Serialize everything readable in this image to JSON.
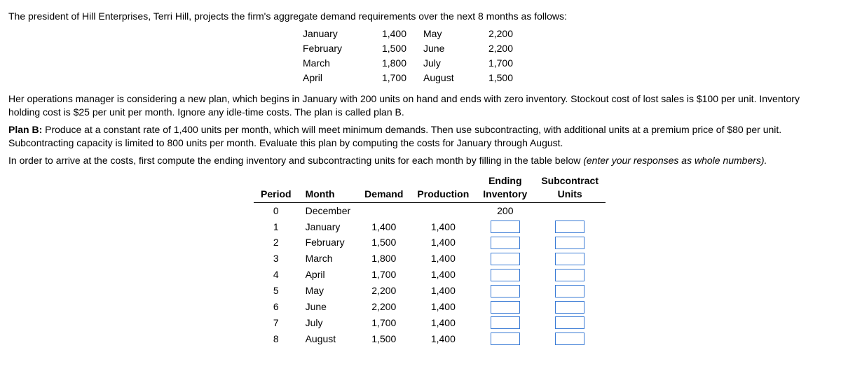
{
  "intro": "The president of Hill Enterprises, Terri Hill, projects the firm's aggregate demand requirements over the next 8 months as follows:",
  "demand_months": {
    "r1c1": "January",
    "r1c2": "1,400",
    "r1c3": "May",
    "r1c4": "2,200",
    "r2c1": "February",
    "r2c2": "1,500",
    "r2c3": "June",
    "r2c4": "2,200",
    "r3c1": "March",
    "r3c2": "1,800",
    "r3c3": "July",
    "r3c4": "1,700",
    "r4c1": "April",
    "r4c2": "1,700",
    "r4c3": "August",
    "r4c4": "1,500"
  },
  "para2": "Her operations manager is considering a new plan, which begins in January with 200 units on hand and ends with zero inventory. Stockout cost of lost sales is $100 per unit. Inventory holding cost is $25 per unit per month. Ignore any idle-time costs. The plan is called plan B.",
  "planB_label": "Plan B: ",
  "planB_text": "Produce at a constant rate of 1,400 units per month, which will meet minimum demands. Then use subcontracting, with additional units at a premium price of $80 per unit. Subcontracting capacity is limited to 800 units per month. Evaluate this plan by computing the costs for January through August.",
  "para4a": "In order to arrive at the costs, first compute the ending inventory and subcontracting units for each month by filling in the table below ",
  "para4b": "(enter your responses as whole numbers).",
  "table": {
    "headers": {
      "period": "Period",
      "month": "Month",
      "demand": "Demand",
      "production": "Production",
      "ending1": "Ending",
      "ending2": "Inventory",
      "sub1": "Subcontract",
      "sub2": "Units"
    },
    "initial_inventory": "200",
    "rows": [
      {
        "period": "0",
        "month": "December",
        "demand": "",
        "production": "",
        "has_inputs": false
      },
      {
        "period": "1",
        "month": "January",
        "demand": "1,400",
        "production": "1,400",
        "has_inputs": true
      },
      {
        "period": "2",
        "month": "February",
        "demand": "1,500",
        "production": "1,400",
        "has_inputs": true
      },
      {
        "period": "3",
        "month": "March",
        "demand": "1,800",
        "production": "1,400",
        "has_inputs": true
      },
      {
        "period": "4",
        "month": "April",
        "demand": "1,700",
        "production": "1,400",
        "has_inputs": true
      },
      {
        "period": "5",
        "month": "May",
        "demand": "2,200",
        "production": "1,400",
        "has_inputs": true
      },
      {
        "period": "6",
        "month": "June",
        "demand": "2,200",
        "production": "1,400",
        "has_inputs": true
      },
      {
        "period": "7",
        "month": "July",
        "demand": "1,700",
        "production": "1,400",
        "has_inputs": true
      },
      {
        "period": "8",
        "month": "August",
        "demand": "1,500",
        "production": "1,400",
        "has_inputs": true
      }
    ]
  }
}
